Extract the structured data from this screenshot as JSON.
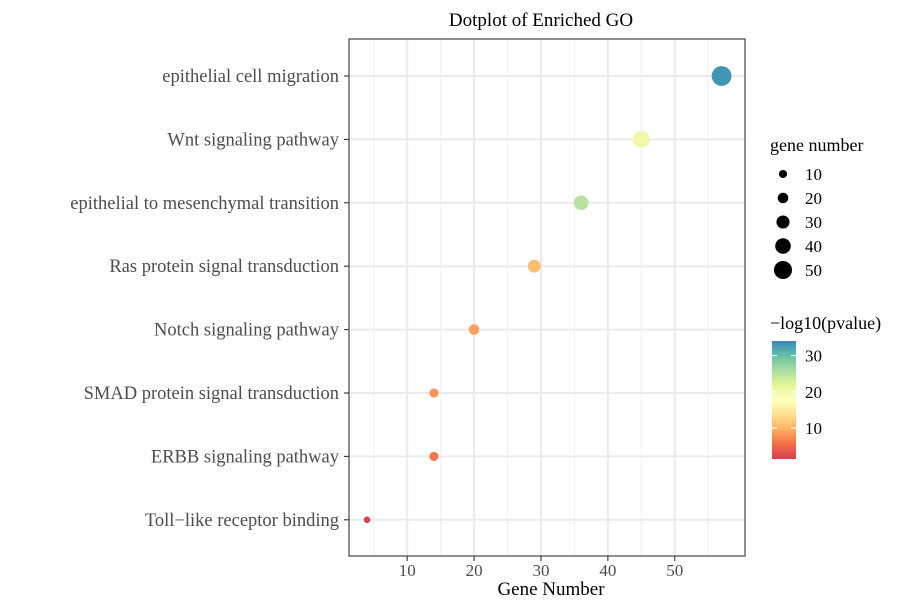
{
  "chart_data": {
    "type": "scatter",
    "title": "Dotplot of Enriched GO",
    "xlabel": "Gene Number",
    "ylabel": "",
    "xlim": [
      1.3,
      60.5
    ],
    "x_ticks": [
      10,
      20,
      30,
      40,
      50
    ],
    "x_tick_labels": [
      "10",
      "20",
      "30",
      "40",
      "50"
    ],
    "categories": [
      "epithelial cell migration",
      "Wnt signaling pathway",
      "epithelial to mesenchymal transition",
      "Ras protein signal transduction",
      "Notch signaling pathway",
      "SMAD protein signal transduction",
      "ERBB signaling pathway",
      "Toll−like receptor binding"
    ],
    "points": [
      {
        "category": "epithelial cell migration",
        "x": 57,
        "gene_number": 57,
        "neg_log10_p": 33
      },
      {
        "category": "Wnt signaling pathway",
        "x": 45,
        "gene_number": 45,
        "neg_log10_p": 20
      },
      {
        "category": "epithelial to mesenchymal transition",
        "x": 36,
        "gene_number": 36,
        "neg_log10_p": 25
      },
      {
        "category": "Ras protein signal transduction",
        "x": 29,
        "gene_number": 29,
        "neg_log10_p": 11
      },
      {
        "category": "Notch signaling pathway",
        "x": 20,
        "gene_number": 20,
        "neg_log10_p": 9
      },
      {
        "category": "SMAD protein signal transduction",
        "x": 14,
        "gene_number": 14,
        "neg_log10_p": 8
      },
      {
        "category": "ERBB signaling pathway",
        "x": 14,
        "gene_number": 14,
        "neg_log10_p": 6
      },
      {
        "category": "Toll−like receptor binding",
        "x": 4,
        "gene_number": 4,
        "neg_log10_p": 2
      }
    ],
    "grid": true,
    "legend_size": {
      "title": "gene number",
      "values": [
        10,
        20,
        30,
        40,
        50
      ],
      "labels": [
        "10",
        "20",
        "30",
        "40",
        "50"
      ]
    },
    "legend_color": {
      "title": "−log10(pvalue)",
      "range": [
        1.5,
        34
      ],
      "ticks": [
        10,
        20,
        30
      ],
      "tick_labels": [
        "10",
        "20",
        "30"
      ],
      "palette": [
        "#d53e4f",
        "#f46d43",
        "#fdae61",
        "#fee08b",
        "#ffffbf",
        "#e6f598",
        "#abdda4",
        "#66c2a5",
        "#3288bd"
      ]
    },
    "legend_placement": "right"
  }
}
